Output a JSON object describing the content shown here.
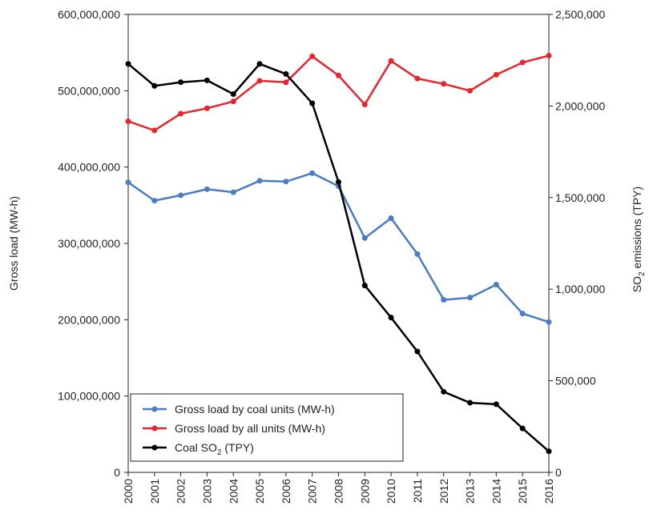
{
  "chart_data": {
    "type": "line",
    "x": [
      "2000",
      "2001",
      "2002",
      "2003",
      "2004",
      "2005",
      "2006",
      "2007",
      "2008",
      "2009",
      "2010",
      "2011",
      "2012",
      "2013",
      "2014",
      "2015",
      "2016"
    ],
    "x_tick_labels": [
      "2000",
      "2001",
      "2002",
      "2003",
      "2004",
      "2005",
      "2006",
      "2007",
      "2008",
      "2009",
      "2010",
      "2011",
      "2012",
      "2013",
      "2014",
      "2015",
      "2016"
    ],
    "ylabel_left": "Gross load (MW-h)",
    "ylabel_right_parts": {
      "main": "SO",
      "sub": "2",
      "rest": " emissions (TPY)"
    },
    "ylim_left": [
      0,
      600000000
    ],
    "ylim_right": [
      0,
      2500000
    ],
    "yticks_left": [
      "0",
      "100,000,000",
      "200,000,000",
      "300,000,000",
      "400,000,000",
      "500,000,000",
      "600,000,000"
    ],
    "yticks_left_values": [
      0,
      100000000,
      200000000,
      300000000,
      400000000,
      500000000,
      600000000
    ],
    "yticks_right": [
      "0",
      "500,000",
      "1,000,000",
      "1,500,000",
      "2,000,000",
      "2,500,000"
    ],
    "yticks_right_values": [
      0,
      500000,
      1000000,
      1500000,
      2000000,
      2500000
    ],
    "grid": false,
    "legend_placement": "bottom-left",
    "series": [
      {
        "name": "Gross load by coal units (MW-h)",
        "axis": "left",
        "color": "#4a7cc4",
        "values": [
          380000000,
          356000000,
          363000000,
          371000000,
          367000000,
          382000000,
          381000000,
          392000000,
          375000000,
          307000000,
          333000000,
          286000000,
          226000000,
          229000000,
          246000000,
          208000000,
          197000000
        ]
      },
      {
        "name": "Gross load by all units (MW-h)",
        "axis": "left",
        "color": "#e8242c",
        "values": [
          460000000,
          448000000,
          470000000,
          477000000,
          486000000,
          513000000,
          511000000,
          545000000,
          520000000,
          482000000,
          539000000,
          516000000,
          509000000,
          500000000,
          521000000,
          537000000,
          546000000
        ]
      },
      {
        "name_parts": {
          "main": "Coal SO",
          "sub": "2",
          "rest": " (TPY)"
        },
        "axis": "right",
        "color": "#000000",
        "values": [
          2230000,
          2110000,
          2130000,
          2140000,
          2065000,
          2230000,
          2175000,
          2015000,
          1585000,
          1020000,
          845000,
          660000,
          440000,
          380000,
          372000,
          240000,
          115000
        ]
      }
    ]
  }
}
